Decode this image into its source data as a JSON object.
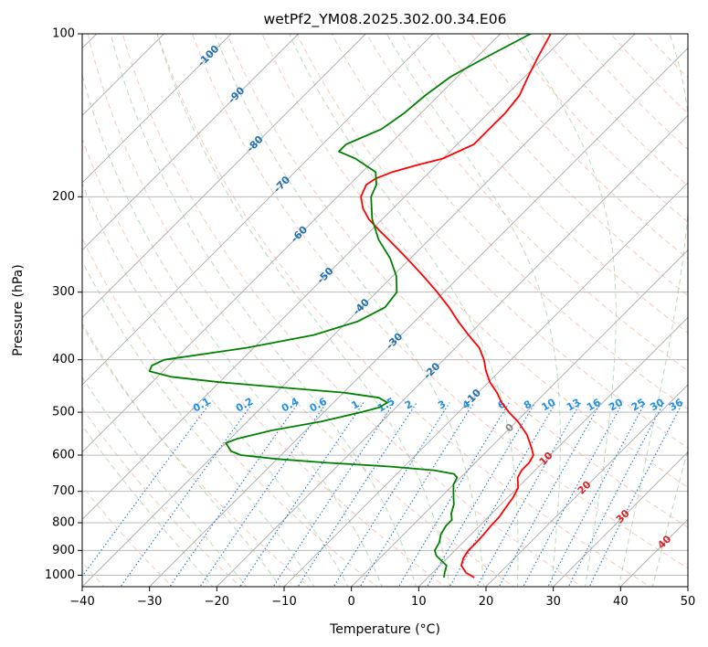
{
  "chart_data": {
    "type": "line",
    "title": "wetPf2_YM08.2025.302.00.34.E06",
    "xlabel": "Temperature (°C)",
    "ylabel": "Pressure (hPa)",
    "xlim": [
      -40,
      50
    ],
    "ylim": [
      1050,
      100
    ],
    "skew_deg": 45,
    "x_ticks": [
      -40,
      -30,
      -20,
      -10,
      0,
      10,
      20,
      30,
      40,
      50
    ],
    "x_tick_labels": [
      "−40",
      "−30",
      "−20",
      "−10",
      "0",
      "10",
      "20",
      "30",
      "40",
      "50"
    ],
    "y_ticks": [
      100,
      200,
      300,
      400,
      500,
      600,
      700,
      800,
      900,
      1000
    ],
    "y_tick_labels": [
      "100",
      "200",
      "300",
      "400",
      "500",
      "600",
      "700",
      "800",
      "900",
      "1000"
    ],
    "dry_adiabats_C": [
      -70,
      -60,
      -50,
      -40,
      -30,
      -20,
      -10,
      0,
      10,
      20,
      30,
      40,
      50,
      60,
      70,
      80,
      90,
      100,
      110,
      120,
      130,
      140,
      150,
      160,
      170,
      180
    ],
    "moist_adiabats_C": [
      -20,
      -15,
      -10,
      -5,
      0,
      5,
      10,
      15,
      20,
      25,
      30,
      35,
      40,
      45
    ],
    "mixing_ratios": [
      0.1,
      0.2,
      0.4,
      0.6,
      1,
      1.5,
      2,
      3,
      4,
      6,
      8,
      10,
      13,
      16,
      20,
      25,
      30,
      36
    ],
    "mixing_ratio_labels": [
      "0.1",
      "0.2",
      "0.4",
      "0.6",
      "1",
      "1.5",
      "2",
      "3",
      "4",
      "6",
      "8",
      "10",
      "13",
      "16",
      "20",
      "25",
      "30",
      "36"
    ],
    "blue_isotherm_labels": [
      "-100",
      "-90",
      "-80",
      "-70",
      "-60",
      "-50",
      "-40",
      "-30",
      "-20",
      "-10"
    ],
    "red_isotherm_labels": [
      "0",
      "10",
      "20",
      "30",
      "40"
    ],
    "series": [
      {
        "name": "temperature",
        "color": "#ff0000",
        "points": [
          [
            1010,
            16.9
          ],
          [
            990,
            15.0
          ],
          [
            960,
            13.2
          ],
          [
            930,
            12.4
          ],
          [
            900,
            12.0
          ],
          [
            870,
            12.0
          ],
          [
            840,
            11.9
          ],
          [
            810,
            11.7
          ],
          [
            780,
            11.6
          ],
          [
            750,
            11.2
          ],
          [
            720,
            10.8
          ],
          [
            690,
            10.1
          ],
          [
            660,
            8.5
          ],
          [
            640,
            8.0
          ],
          [
            620,
            8.0
          ],
          [
            600,
            7.5
          ],
          [
            580,
            6.0
          ],
          [
            550,
            3.5
          ],
          [
            520,
            0.2
          ],
          [
            500,
            -2.5
          ],
          [
            480,
            -5.0
          ],
          [
            460,
            -7.2
          ],
          [
            440,
            -9.8
          ],
          [
            420,
            -12.0
          ],
          [
            400,
            -14.0
          ],
          [
            380,
            -16.5
          ],
          [
            360,
            -20.0
          ],
          [
            340,
            -23.5
          ],
          [
            320,
            -27.0
          ],
          [
            300,
            -31.0
          ],
          [
            280,
            -35.5
          ],
          [
            260,
            -40.5
          ],
          [
            240,
            -46.0
          ],
          [
            230,
            -49.0
          ],
          [
            220,
            -52.0
          ],
          [
            210,
            -54.5
          ],
          [
            200,
            -56.5
          ],
          [
            190,
            -57.5
          ],
          [
            185,
            -57.0
          ],
          [
            180,
            -55.5
          ],
          [
            175,
            -53.0
          ],
          [
            170,
            -50.0
          ],
          [
            160,
            -47.5
          ],
          [
            150,
            -47.5
          ],
          [
            140,
            -47.5
          ],
          [
            130,
            -48.0
          ],
          [
            120,
            -49.5
          ],
          [
            110,
            -51.0
          ],
          [
            100,
            -52.5
          ]
        ]
      },
      {
        "name": "dewpoint",
        "color": "#008000",
        "points": [
          [
            1010,
            12.4
          ],
          [
            990,
            11.8
          ],
          [
            960,
            11.0
          ],
          [
            940,
            9.5
          ],
          [
            920,
            8.0
          ],
          [
            900,
            7.0
          ],
          [
            870,
            6.5
          ],
          [
            840,
            5.5
          ],
          [
            810,
            5.0
          ],
          [
            790,
            5.0
          ],
          [
            770,
            4.0
          ],
          [
            740,
            3.0
          ],
          [
            720,
            2.0
          ],
          [
            700,
            1.0
          ],
          [
            680,
            0.0
          ],
          [
            660,
            -0.5
          ],
          [
            650,
            -1.5
          ],
          [
            640,
            -5.0
          ],
          [
            630,
            -12.0
          ],
          [
            620,
            -22.0
          ],
          [
            610,
            -30.0
          ],
          [
            600,
            -36.0
          ],
          [
            590,
            -38.0
          ],
          [
            580,
            -39.0
          ],
          [
            570,
            -40.0
          ],
          [
            560,
            -39.0
          ],
          [
            540,
            -35.0
          ],
          [
            520,
            -29.0
          ],
          [
            500,
            -24.5
          ],
          [
            490,
            -22.5
          ],
          [
            480,
            -22.0
          ],
          [
            470,
            -24.0
          ],
          [
            460,
            -30.0
          ],
          [
            450,
            -40.0
          ],
          [
            440,
            -50.0
          ],
          [
            430,
            -58.0
          ],
          [
            420,
            -62.0
          ],
          [
            410,
            -62.5
          ],
          [
            400,
            -61.5
          ],
          [
            380,
            -51.0
          ],
          [
            360,
            -43.0
          ],
          [
            340,
            -38.5
          ],
          [
            320,
            -36.5
          ],
          [
            300,
            -37.0
          ],
          [
            280,
            -39.5
          ],
          [
            260,
            -43.0
          ],
          [
            240,
            -47.5
          ],
          [
            220,
            -51.5
          ],
          [
            200,
            -55.0
          ],
          [
            190,
            -56.0
          ],
          [
            180,
            -58.0
          ],
          [
            170,
            -63.0
          ],
          [
            165,
            -66.5
          ],
          [
            160,
            -66.5
          ],
          [
            150,
            -63.5
          ],
          [
            140,
            -62.5
          ],
          [
            130,
            -62.0
          ],
          [
            120,
            -61.0
          ],
          [
            110,
            -58.5
          ],
          [
            100,
            -55.5
          ]
        ]
      }
    ]
  }
}
